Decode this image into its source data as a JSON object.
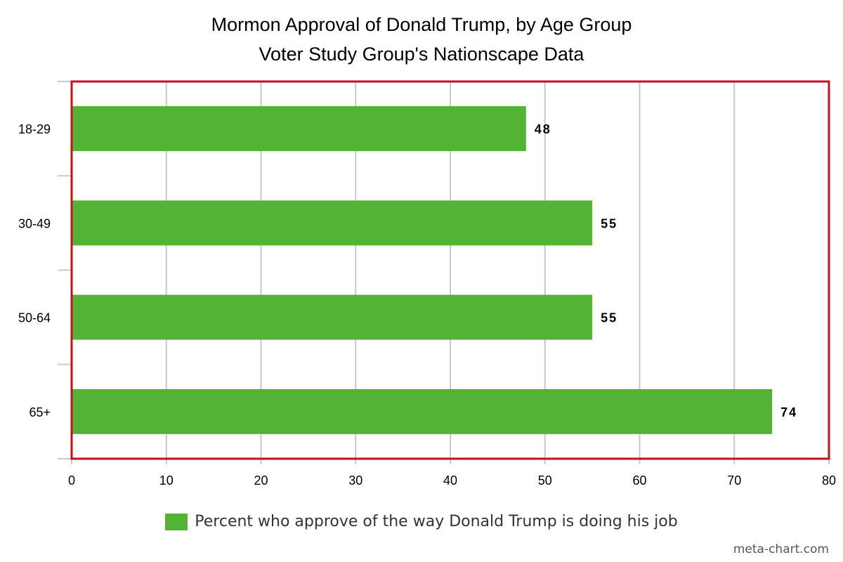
{
  "chart_data": {
    "type": "bar",
    "orientation": "horizontal",
    "title": "Mormon Approval of Donald Trump, by Age Group",
    "subtitle": "Voter Study Group's Nationscape Data",
    "categories": [
      "18-29",
      "30-49",
      "50-64",
      "65+"
    ],
    "series": [
      {
        "name": "Percent who approve of the way Donald Trump is doing his job",
        "values": [
          48,
          55,
          55,
          74
        ],
        "color": "#52b335"
      }
    ],
    "data_labels": [
      "48",
      "55",
      "55",
      "74"
    ],
    "xlim": [
      0,
      80
    ],
    "x_ticks": [
      0,
      10,
      20,
      30,
      40,
      50,
      60,
      70,
      80
    ],
    "grid": true,
    "legend_position": "bottom",
    "plot_border_color": "#c0121a"
  },
  "watermark": "meta-chart.com"
}
